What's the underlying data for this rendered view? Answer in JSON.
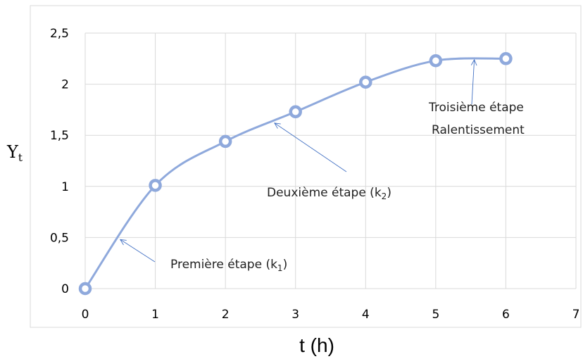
{
  "chart_data": {
    "type": "scatter",
    "xlabel": "t (h)",
    "ylabel": "Y",
    "ylabel_subscript": "t",
    "xlim": [
      0,
      7
    ],
    "ylim": [
      0,
      2.5
    ],
    "x_ticks": [
      "0",
      "1",
      "2",
      "3",
      "4",
      "5",
      "6",
      "7"
    ],
    "y_ticks": [
      "0",
      "0,5",
      "1",
      "1,5",
      "2",
      "2,5"
    ],
    "grid": "vertical and horizontal",
    "series": [
      {
        "x": [
          0,
          1,
          2,
          3,
          4,
          5,
          6
        ],
        "y": [
          0,
          1.01,
          1.44,
          1.73,
          2.02,
          2.23,
          2.25
        ],
        "color": "#8fa9dc",
        "smooth": true
      }
    ],
    "annotations": [
      {
        "text": "Première étape (k",
        "sub": "1",
        "close": ")",
        "arrow_to": [
          0.5,
          0.48
        ]
      },
      {
        "text": "Deuxième  étape (k",
        "sub": "2",
        "close": ")",
        "arrow_to": [
          2.7,
          1.62
        ]
      },
      {
        "text": "Troisième  étape",
        "line2": "Ralentissement",
        "arrow_to": [
          5.55,
          2.24
        ]
      }
    ]
  }
}
